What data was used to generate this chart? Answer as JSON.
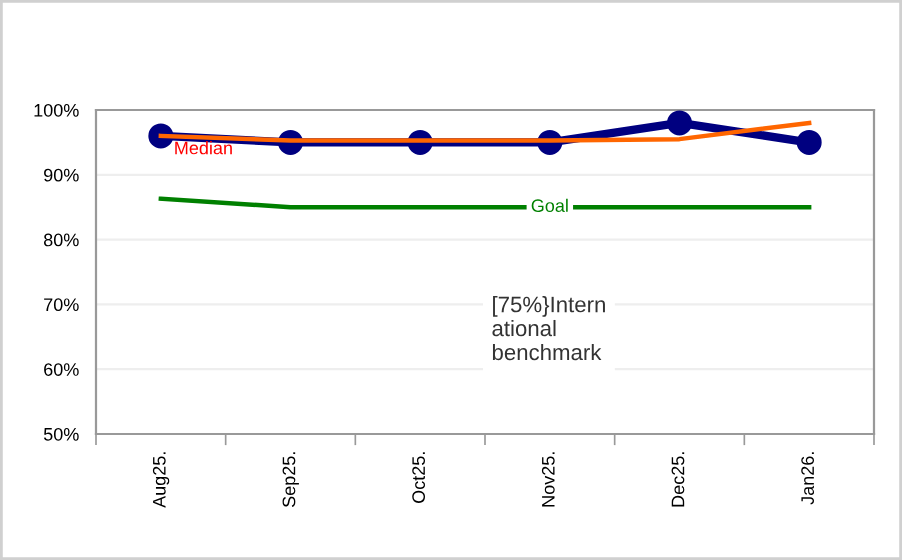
{
  "chart_data": {
    "type": "line",
    "categories": [
      "Aug25.",
      "Sep25.",
      "Oct25.",
      "Nov25.",
      "Dec25.",
      "Jan26."
    ],
    "series": [
      {
        "color": "#000080",
        "values": [
          96,
          95,
          95,
          95,
          98,
          95
        ],
        "marker": "circle"
      },
      {
        "name": "Median",
        "color": "#ff6600",
        "values": [
          96,
          95.3,
          95.3,
          95.3,
          95.5,
          98
        ]
      },
      {
        "name": "Goal",
        "color": "#008000",
        "values": [
          86.3,
          85,
          85,
          85,
          85,
          85
        ]
      }
    ],
    "annotations": [
      "[75%}Intern\national\nbenchmark"
    ],
    "ylim": [
      50,
      100
    ],
    "yticks": [
      {
        "value": 50,
        "label": "50%"
      },
      {
        "value": 60,
        "label": "60%"
      },
      {
        "value": 70,
        "label": "70%"
      },
      {
        "value": 80,
        "label": "80%"
      },
      {
        "value": 90,
        "label": "90%"
      },
      {
        "value": 100,
        "label": "100%"
      }
    ],
    "grid": "y",
    "legend": false
  }
}
